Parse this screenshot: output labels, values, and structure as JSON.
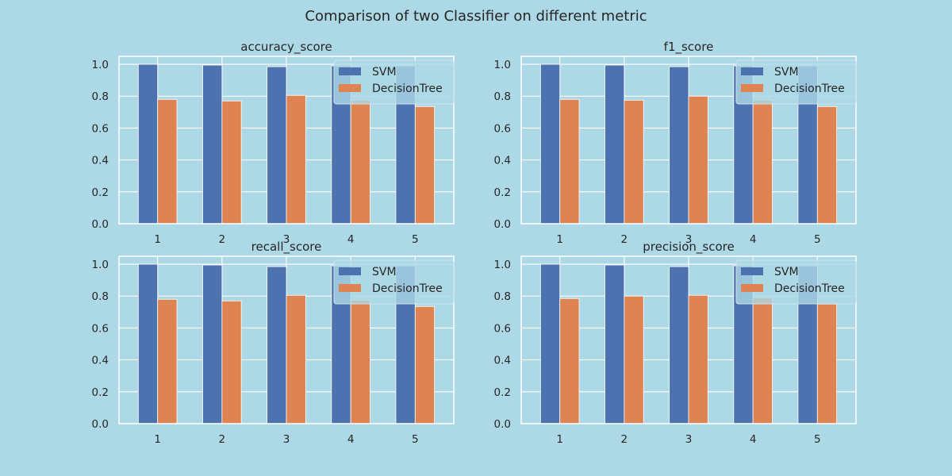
{
  "figure": {
    "suptitle": "Comparison of two Classifier on different metric",
    "background": "#add8e6",
    "grid": true,
    "legend_placement": "upper-right",
    "series_colors": {
      "SVM": "#4c72b0",
      "DecisionTree": "#dd8452"
    }
  },
  "chart_data": [
    {
      "type": "bar",
      "title": "accuracy_score",
      "categories": [
        "1",
        "2",
        "3",
        "4",
        "5"
      ],
      "ylim": [
        0,
        1.05
      ],
      "yticks": [
        "0.0",
        "0.2",
        "0.4",
        "0.6",
        "0.8",
        "1.0"
      ],
      "series": [
        {
          "name": "SVM",
          "values": [
            1.0,
            0.995,
            0.985,
            0.99,
            0.99
          ]
        },
        {
          "name": "DecisionTree",
          "values": [
            0.78,
            0.77,
            0.805,
            0.775,
            0.735
          ]
        }
      ]
    },
    {
      "type": "bar",
      "title": "f1_score",
      "categories": [
        "1",
        "2",
        "3",
        "4",
        "5"
      ],
      "ylim": [
        0,
        1.05
      ],
      "yticks": [
        "0.0",
        "0.2",
        "0.4",
        "0.6",
        "0.8",
        "1.0"
      ],
      "series": [
        {
          "name": "SVM",
          "values": [
            1.0,
            0.995,
            0.985,
            0.99,
            0.99
          ]
        },
        {
          "name": "DecisionTree",
          "values": [
            0.78,
            0.775,
            0.8,
            0.775,
            0.735
          ]
        }
      ]
    },
    {
      "type": "bar",
      "title": "recall_score",
      "categories": [
        "1",
        "2",
        "3",
        "4",
        "5"
      ],
      "ylim": [
        0,
        1.05
      ],
      "yticks": [
        "0.0",
        "0.2",
        "0.4",
        "0.6",
        "0.8",
        "1.0"
      ],
      "series": [
        {
          "name": "SVM",
          "values": [
            1.0,
            0.995,
            0.985,
            0.99,
            0.99
          ]
        },
        {
          "name": "DecisionTree",
          "values": [
            0.78,
            0.77,
            0.805,
            0.775,
            0.735
          ]
        }
      ]
    },
    {
      "type": "bar",
      "title": "precision_score",
      "categories": [
        "1",
        "2",
        "3",
        "4",
        "5"
      ],
      "ylim": [
        0,
        1.05
      ],
      "yticks": [
        "0.0",
        "0.2",
        "0.4",
        "0.6",
        "0.8",
        "1.0"
      ],
      "series": [
        {
          "name": "SVM",
          "values": [
            1.0,
            0.995,
            0.985,
            0.99,
            0.99
          ]
        },
        {
          "name": "DecisionTree",
          "values": [
            0.785,
            0.8,
            0.805,
            0.79,
            0.75
          ]
        }
      ]
    }
  ]
}
